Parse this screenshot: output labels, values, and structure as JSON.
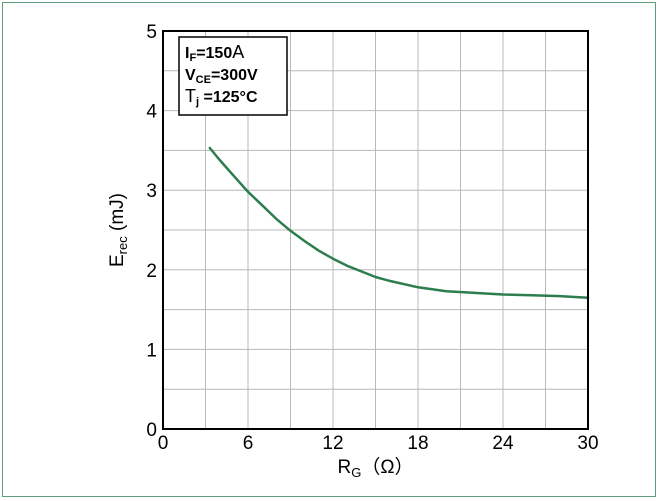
{
  "chart_data": {
    "type": "line",
    "xlabel": "R_G (Ω)",
    "xlabel_main": "R",
    "xlabel_sub": "G",
    "xlabel_unit": "（Ω）",
    "ylabel_main": "E",
    "ylabel_sub": "rec",
    "ylabel_unit": " (mJ)",
    "xlim": [
      0,
      30
    ],
    "ylim": [
      0,
      5
    ],
    "x_ticks": [
      "0",
      "6",
      "12",
      "18",
      "24",
      "30"
    ],
    "y_ticks": [
      "0",
      "1",
      "2",
      "3",
      "4",
      "5"
    ],
    "x_minor_step": 3,
    "y_minor_step": 0.5,
    "grid": true,
    "legend_placement": "top-left",
    "conditions": [
      {
        "main": "I",
        "sub": "F",
        "rest": "=150",
        "tail": "A"
      },
      {
        "main": "V",
        "sub": "CE",
        "rest": "=300V",
        "tail": ""
      },
      {
        "main": "T",
        "sub": "j",
        "rest": " =125°C",
        "tail": ""
      }
    ],
    "series": [
      {
        "color": "#2e7d4f",
        "x": [
          3.3,
          4,
          5,
          6,
          7,
          8,
          9,
          10,
          11,
          12,
          13,
          14,
          15,
          16,
          18,
          20,
          22,
          24,
          26,
          28,
          30
        ],
        "y": [
          3.53,
          3.38,
          3.18,
          2.98,
          2.81,
          2.64,
          2.49,
          2.36,
          2.24,
          2.14,
          2.05,
          1.98,
          1.91,
          1.86,
          1.78,
          1.73,
          1.71,
          1.69,
          1.68,
          1.67,
          1.65
        ]
      }
    ]
  }
}
